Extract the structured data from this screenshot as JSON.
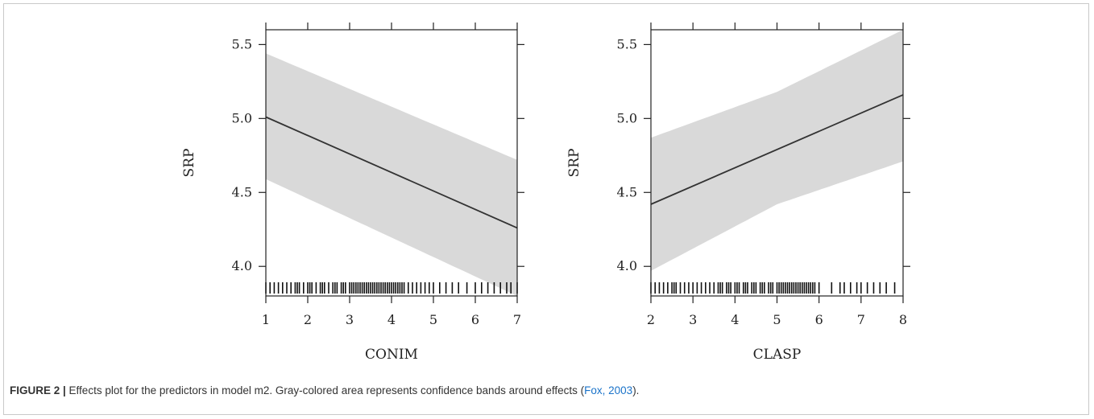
{
  "caption": {
    "label": "FIGURE 2 |",
    "text_before": " Effects plot for the predictors in model m2. Gray-colored area represents confidence bands around effects (",
    "citation": "Fox, 2003",
    "text_after": ")."
  },
  "chart_data": [
    {
      "type": "line",
      "xlabel": "CONIM",
      "ylabel": "SRP",
      "xlim": [
        1,
        7
      ],
      "ylim": [
        3.8,
        5.6
      ],
      "x_ticks": [
        1,
        2,
        3,
        4,
        5,
        6,
        7
      ],
      "y_ticks": [
        4.0,
        4.5,
        5.0,
        5.5
      ],
      "y_tick_labels": [
        "4.0",
        "4.5",
        "5.0",
        "5.5"
      ],
      "grid": false,
      "series": [
        {
          "x": [
            1,
            7
          ],
          "y": [
            5.01,
            4.26
          ]
        }
      ],
      "band": {
        "x": [
          1,
          7
        ],
        "lower": [
          4.59,
          3.8
        ],
        "upper": [
          5.44,
          4.72
        ]
      },
      "rug": [
        1.0,
        1.1,
        1.2,
        1.3,
        1.4,
        1.5,
        1.6,
        1.7,
        1.75,
        1.8,
        1.9,
        2.0,
        2.05,
        2.1,
        2.2,
        2.3,
        2.35,
        2.4,
        2.5,
        2.6,
        2.65,
        2.7,
        2.8,
        2.85,
        2.9,
        3.0,
        3.05,
        3.1,
        3.15,
        3.2,
        3.25,
        3.3,
        3.35,
        3.4,
        3.45,
        3.5,
        3.55,
        3.6,
        3.65,
        3.7,
        3.75,
        3.8,
        3.85,
        3.9,
        3.95,
        4.0,
        4.05,
        4.1,
        4.15,
        4.2,
        4.25,
        4.3,
        4.4,
        4.5,
        4.6,
        4.7,
        4.8,
        4.9,
        5.0,
        5.15,
        5.3,
        5.45,
        5.6,
        5.8,
        6.0,
        6.15,
        6.3,
        6.45,
        6.6,
        6.75,
        6.85,
        7.0
      ],
      "colors": {
        "band": "#d9d9d9",
        "line": "#333333"
      }
    },
    {
      "type": "line",
      "xlabel": "CLASP",
      "ylabel": "SRP",
      "xlim": [
        2,
        8
      ],
      "ylim": [
        3.8,
        5.6
      ],
      "x_ticks": [
        2,
        3,
        4,
        5,
        6,
        7,
        8
      ],
      "y_ticks": [
        4.0,
        4.5,
        5.0,
        5.5
      ],
      "y_tick_labels": [
        "4.0",
        "4.5",
        "5.0",
        "5.5"
      ],
      "grid": false,
      "series": [
        {
          "x": [
            2,
            8
          ],
          "y": [
            4.42,
            5.16
          ]
        }
      ],
      "band": {
        "x": [
          2,
          5,
          8
        ],
        "lower": [
          3.97,
          4.42,
          4.71
        ],
        "upper": [
          4.87,
          5.18,
          5.6
        ]
      },
      "rug": [
        2.0,
        2.1,
        2.2,
        2.3,
        2.4,
        2.5,
        2.55,
        2.6,
        2.7,
        2.8,
        2.9,
        3.0,
        3.1,
        3.2,
        3.3,
        3.4,
        3.5,
        3.6,
        3.65,
        3.7,
        3.8,
        3.85,
        3.9,
        4.0,
        4.05,
        4.1,
        4.2,
        4.25,
        4.3,
        4.4,
        4.45,
        4.5,
        4.6,
        4.65,
        4.7,
        4.8,
        4.85,
        4.9,
        5.0,
        5.05,
        5.1,
        5.15,
        5.2,
        5.25,
        5.3,
        5.35,
        5.4,
        5.45,
        5.5,
        5.55,
        5.6,
        5.65,
        5.7,
        5.75,
        5.8,
        5.85,
        5.9,
        6.0,
        6.3,
        6.5,
        6.6,
        6.75,
        6.9,
        7.0,
        7.15,
        7.3,
        7.45,
        7.6,
        7.8
      ],
      "colors": {
        "band": "#d9d9d9",
        "line": "#333333"
      }
    }
  ]
}
